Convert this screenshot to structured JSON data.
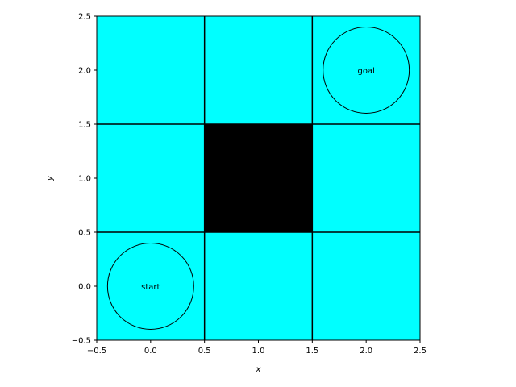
{
  "chart_data": {
    "type": "heatmap",
    "title": "",
    "xlabel": "x",
    "ylabel": "y",
    "xlim": [
      -0.5,
      2.5
    ],
    "ylim": [
      -0.5,
      2.5
    ],
    "xticks": [
      "−0.5",
      "0.0",
      "0.5",
      "1.0",
      "1.5",
      "2.0",
      "2.5"
    ],
    "yticks": [
      "−0.5",
      "0.0",
      "0.5",
      "1.0",
      "1.5",
      "2.0",
      "2.5"
    ],
    "xtick_values": [
      -0.5,
      0.0,
      0.5,
      1.0,
      1.5,
      2.0,
      2.5
    ],
    "ytick_values": [
      -0.5,
      0.0,
      0.5,
      1.0,
      1.5,
      2.0,
      2.5
    ],
    "grid": {
      "rows": 3,
      "cols": 3,
      "cells": [
        {
          "x": 0,
          "y": 0,
          "state": "free"
        },
        {
          "x": 1,
          "y": 0,
          "state": "free"
        },
        {
          "x": 2,
          "y": 0,
          "state": "free"
        },
        {
          "x": 0,
          "y": 1,
          "state": "free"
        },
        {
          "x": 1,
          "y": 1,
          "state": "obstacle"
        },
        {
          "x": 2,
          "y": 1,
          "state": "free"
        },
        {
          "x": 0,
          "y": 2,
          "state": "free"
        },
        {
          "x": 1,
          "y": 2,
          "state": "free"
        },
        {
          "x": 2,
          "y": 2,
          "state": "free"
        }
      ]
    },
    "markers": [
      {
        "label": "start",
        "x": 0.0,
        "y": 0.0,
        "radius": 0.4
      },
      {
        "label": "goal",
        "x": 2.0,
        "y": 2.0,
        "radius": 0.4
      }
    ],
    "colors": {
      "free": "#00ffff",
      "obstacle": "#000000",
      "grid_line": "#000000"
    }
  }
}
